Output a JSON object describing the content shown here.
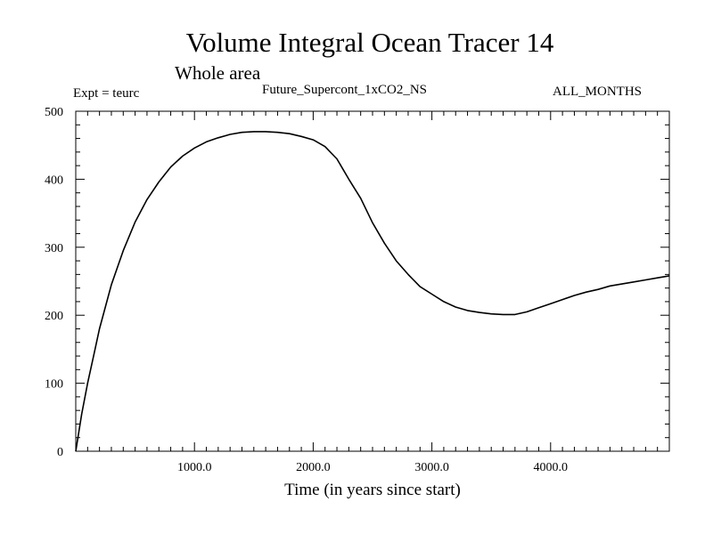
{
  "chart_data": {
    "type": "line",
    "title": "Volume Integral Ocean Tracer 14",
    "subtitle": "Whole area",
    "expt_label": "Expt = teurc",
    "run_name": "Future_Supercont_1xCO2_NS",
    "months_label": "ALL_MONTHS",
    "xlabel": "Time (in years since start)",
    "ylabel": "",
    "xlim": [
      0,
      5000
    ],
    "ylim": [
      0,
      500
    ],
    "x_ticks": [
      1000,
      2000,
      3000,
      4000
    ],
    "x_tick_labels": [
      "1000.0",
      "2000.0",
      "3000.0",
      "4000.0"
    ],
    "y_ticks": [
      0,
      100,
      200,
      300,
      400,
      500
    ],
    "y_tick_labels": [
      "0",
      "100",
      "200",
      "300",
      "400",
      "500"
    ],
    "grid": false,
    "legend": "none",
    "color": "#000000",
    "series": [
      {
        "x": [
          0,
          50,
          100,
          150,
          200,
          300,
          400,
          500,
          600,
          700,
          800,
          900,
          1000,
          1100,
          1200,
          1300,
          1400,
          1500,
          1600,
          1700,
          1800,
          1900,
          2000,
          2100,
          2200,
          2300,
          2400,
          2500,
          2600,
          2700,
          2800,
          2900,
          3000,
          3100,
          3200,
          3300,
          3400,
          3500,
          3600,
          3700,
          3800,
          3900,
          4000,
          4100,
          4200,
          4300,
          4400,
          4500,
          4600,
          4700,
          4800,
          4900,
          5000
        ],
        "y": [
          0,
          55,
          100,
          140,
          180,
          245,
          295,
          337,
          370,
          396,
          418,
          434,
          446,
          455,
          461,
          466,
          469,
          470,
          470,
          469,
          467,
          463,
          458,
          448,
          430,
          400,
          372,
          336,
          306,
          280,
          260,
          242,
          231,
          220,
          212,
          207,
          204,
          202,
          201,
          201,
          205,
          211,
          217,
          223,
          229,
          234,
          238,
          243,
          246,
          249,
          252,
          255,
          258
        ]
      }
    ]
  }
}
